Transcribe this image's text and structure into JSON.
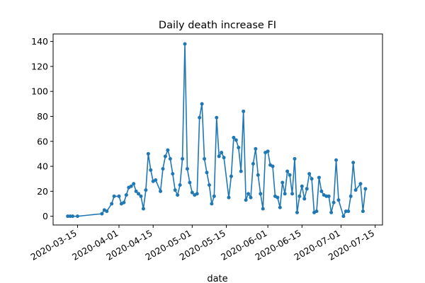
{
  "chart_data": {
    "type": "line",
    "title": "Daily death increase FI",
    "xlabel": "date",
    "ylabel": "",
    "grid": false,
    "legend": "none",
    "series_color": "#1f77b4",
    "xlim": [
      "2020-03-05",
      "2020-07-18"
    ],
    "ylim": [
      -7,
      146
    ],
    "xticks": [
      "2020-03-15",
      "2020-04-01",
      "2020-04-15",
      "2020-05-01",
      "2020-05-15",
      "2020-06-01",
      "2020-06-15",
      "2020-07-01",
      "2020-07-15"
    ],
    "yticks": [
      0,
      20,
      40,
      60,
      80,
      100,
      120,
      140
    ],
    "points": [
      [
        "2020-03-11",
        0
      ],
      [
        "2020-03-12",
        0
      ],
      [
        "2020-03-13",
        0
      ],
      [
        "2020-03-15",
        0
      ],
      [
        "2020-03-25",
        2
      ],
      [
        "2020-03-26",
        5
      ],
      [
        "2020-03-27",
        4
      ],
      [
        "2020-03-29",
        10
      ],
      [
        "2020-03-30",
        16
      ],
      [
        "2020-04-01",
        16
      ],
      [
        "2020-04-02",
        10
      ],
      [
        "2020-04-03",
        11
      ],
      [
        "2020-04-04",
        17
      ],
      [
        "2020-04-05",
        23
      ],
      [
        "2020-04-06",
        24
      ],
      [
        "2020-04-07",
        26
      ],
      [
        "2020-04-08",
        20
      ],
      [
        "2020-04-09",
        18
      ],
      [
        "2020-04-10",
        16
      ],
      [
        "2020-04-11",
        6
      ],
      [
        "2020-04-12",
        21
      ],
      [
        "2020-04-13",
        50
      ],
      [
        "2020-04-14",
        37
      ],
      [
        "2020-04-15",
        28
      ],
      [
        "2020-04-16",
        29
      ],
      [
        "2020-04-18",
        20
      ],
      [
        "2020-04-19",
        38
      ],
      [
        "2020-04-20",
        48
      ],
      [
        "2020-04-21",
        53
      ],
      [
        "2020-04-22",
        46
      ],
      [
        "2020-04-23",
        34
      ],
      [
        "2020-04-24",
        21
      ],
      [
        "2020-04-25",
        17
      ],
      [
        "2020-04-26",
        25
      ],
      [
        "2020-04-27",
        46
      ],
      [
        "2020-04-28",
        138
      ],
      [
        "2020-04-29",
        38
      ],
      [
        "2020-04-30",
        27
      ],
      [
        "2020-05-01",
        19
      ],
      [
        "2020-05-02",
        17
      ],
      [
        "2020-05-03",
        18
      ],
      [
        "2020-05-04",
        79
      ],
      [
        "2020-05-05",
        90
      ],
      [
        "2020-05-06",
        46
      ],
      [
        "2020-05-07",
        35
      ],
      [
        "2020-05-08",
        25
      ],
      [
        "2020-05-09",
        10
      ],
      [
        "2020-05-10",
        16
      ],
      [
        "2020-05-11",
        79
      ],
      [
        "2020-05-12",
        48
      ],
      [
        "2020-05-13",
        51
      ],
      [
        "2020-05-14",
        47
      ],
      [
        "2020-05-16",
        15
      ],
      [
        "2020-05-17",
        32
      ],
      [
        "2020-05-18",
        63
      ],
      [
        "2020-05-19",
        61
      ],
      [
        "2020-05-20",
        55
      ],
      [
        "2020-05-21",
        36
      ],
      [
        "2020-05-22",
        84
      ],
      [
        "2020-05-23",
        13
      ],
      [
        "2020-05-24",
        18
      ],
      [
        "2020-05-25",
        15
      ],
      [
        "2020-05-26",
        42
      ],
      [
        "2020-05-27",
        54
      ],
      [
        "2020-05-28",
        33
      ],
      [
        "2020-05-29",
        18
      ],
      [
        "2020-05-30",
        6
      ],
      [
        "2020-05-31",
        51
      ],
      [
        "2020-06-01",
        52
      ],
      [
        "2020-06-02",
        41
      ],
      [
        "2020-06-03",
        40
      ],
      [
        "2020-06-04",
        16
      ],
      [
        "2020-06-05",
        15
      ],
      [
        "2020-06-06",
        7
      ],
      [
        "2020-06-07",
        27
      ],
      [
        "2020-06-08",
        18
      ],
      [
        "2020-06-09",
        36
      ],
      [
        "2020-06-10",
        33
      ],
      [
        "2020-06-11",
        18
      ],
      [
        "2020-06-12",
        46
      ],
      [
        "2020-06-13",
        3
      ],
      [
        "2020-06-14",
        16
      ],
      [
        "2020-06-15",
        24
      ],
      [
        "2020-06-16",
        14
      ],
      [
        "2020-06-17",
        22
      ],
      [
        "2020-06-18",
        34
      ],
      [
        "2020-06-19",
        30
      ],
      [
        "2020-06-20",
        3
      ],
      [
        "2020-06-21",
        4
      ],
      [
        "2020-06-22",
        31
      ],
      [
        "2020-06-23",
        20
      ],
      [
        "2020-06-24",
        17
      ],
      [
        "2020-06-25",
        16
      ],
      [
        "2020-06-26",
        16
      ],
      [
        "2020-06-27",
        3
      ],
      [
        "2020-06-28",
        11
      ],
      [
        "2020-06-29",
        45
      ],
      [
        "2020-06-30",
        13
      ],
      [
        "2020-07-02",
        0
      ],
      [
        "2020-07-03",
        4
      ],
      [
        "2020-07-04",
        4
      ],
      [
        "2020-07-05",
        16
      ],
      [
        "2020-07-06",
        43
      ],
      [
        "2020-07-07",
        21
      ],
      [
        "2020-07-09",
        26
      ],
      [
        "2020-07-10",
        4
      ],
      [
        "2020-07-11",
        22
      ]
    ]
  }
}
